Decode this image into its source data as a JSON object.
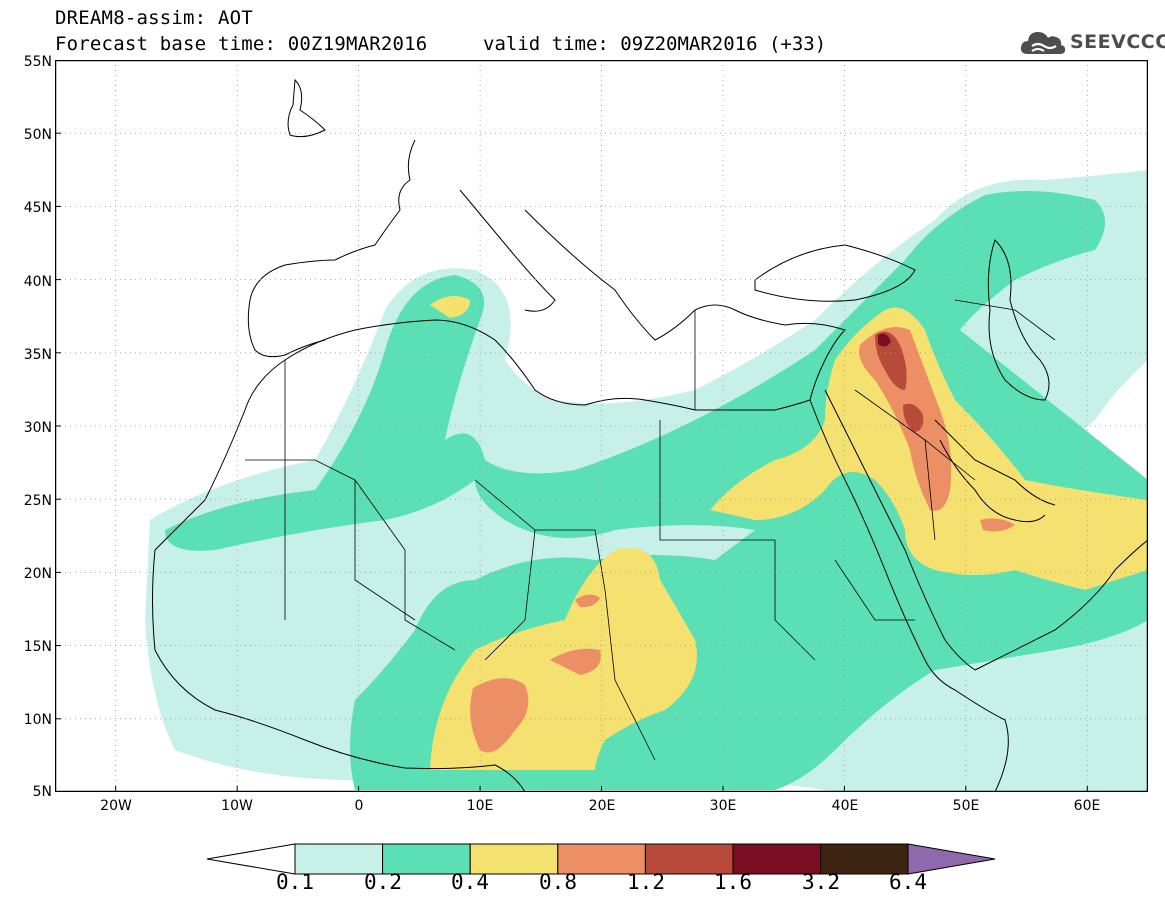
{
  "header": {
    "title": "DREAM8-assim: AOT",
    "base_time": "Forecast base time: 00Z19MAR2016",
    "valid_time": "valid time: 09Z20MAR2016 (+33)"
  },
  "logo": {
    "text": "SEEVCCC",
    "icon": "cloud-icon"
  },
  "axes": {
    "lat_labels": [
      "55N",
      "50N",
      "45N",
      "40N",
      "35N",
      "30N",
      "25N",
      "20N",
      "15N",
      "10N",
      "5N"
    ],
    "lon_labels": [
      "20W",
      "10W",
      "0",
      "10E",
      "20E",
      "30E",
      "40E",
      "50E",
      "60E"
    ]
  },
  "colorbar": {
    "labels": [
      "0.1",
      "0.2",
      "0.4",
      "0.8",
      "1.2",
      "1.6",
      "3.2",
      "6.4"
    ],
    "colors": [
      "#c6f0e8",
      "#5ae0b4",
      "#f5e16f",
      "#ec8f64",
      "#b84a3a",
      "#7a0e23",
      "#3d2410",
      "#8e6aac"
    ]
  },
  "map_data": {
    "field": "Aerosol Optical Thickness",
    "lon_range": [
      -25,
      65
    ],
    "lat_range": [
      5,
      55
    ],
    "max_location": {
      "lon": 43,
      "lat": 36,
      "class": "3.2"
    }
  }
}
